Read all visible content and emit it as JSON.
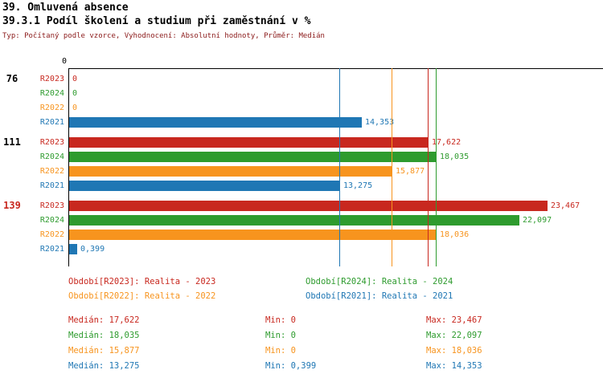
{
  "header": {
    "report_title": "39. Omluvená absence",
    "chart_title": "39.3.1 Podíl školení a studium při zaměstnání v %",
    "subtitle": "Typ: Počítaný podle vzorce, Vyhodnocení: Absolutní hodnoty, Průměr: Medián"
  },
  "colors": {
    "r2023": "#c8281f",
    "r2024": "#2e9b2e",
    "r2022": "#f7941e",
    "r2021": "#1f77b4",
    "subtitle_text": "#8b1a1a",
    "axis": "#000000",
    "group_label": "#000000",
    "group_label_highlight": "#c8281f"
  },
  "chart_data": {
    "type": "bar",
    "orientation": "horizontal",
    "title": "39.3.1 Podíl školení a studium při zaměstnání v %",
    "axis_origin_label": "0",
    "xlim": [
      0,
      23.467
    ],
    "grid": false,
    "series_order": [
      "R2023",
      "R2024",
      "R2022",
      "R2021"
    ],
    "groups": [
      {
        "label": "76",
        "highlight": false,
        "bars": [
          {
            "series": "R2023",
            "value": 0,
            "label": "0"
          },
          {
            "series": "R2024",
            "value": 0,
            "label": "0"
          },
          {
            "series": "R2022",
            "value": 0,
            "label": "0"
          },
          {
            "series": "R2021",
            "value": 14.353,
            "label": "14,353"
          }
        ]
      },
      {
        "label": "111",
        "highlight": false,
        "bars": [
          {
            "series": "R2023",
            "value": 17.622,
            "label": "17,622"
          },
          {
            "series": "R2024",
            "value": 18.035,
            "label": "18,035"
          },
          {
            "series": "R2022",
            "value": 15.877,
            "label": "15,877"
          },
          {
            "series": "R2021",
            "value": 13.275,
            "label": "13,275"
          }
        ]
      },
      {
        "label": "139",
        "highlight": true,
        "bars": [
          {
            "series": "R2023",
            "value": 23.467,
            "label": "23,467"
          },
          {
            "series": "R2024",
            "value": 22.097,
            "label": "22,097"
          },
          {
            "series": "R2022",
            "value": 18.036,
            "label": "18,036"
          },
          {
            "series": "R2021",
            "value": 0.399,
            "label": "0,399"
          }
        ]
      }
    ],
    "median_lines": [
      {
        "series": "R2023",
        "value": 17.622
      },
      {
        "series": "R2024",
        "value": 18.035
      },
      {
        "series": "R2022",
        "value": 15.877
      },
      {
        "series": "R2021",
        "value": 13.275
      }
    ]
  },
  "legend": [
    {
      "series": "R2023",
      "label": "Období[R2023]: Realita - 2023"
    },
    {
      "series": "R2024",
      "label": "Období[R2024]: Realita - 2024"
    },
    {
      "series": "R2022",
      "label": "Období[R2022]: Realita - 2022"
    },
    {
      "series": "R2021",
      "label": "Období[R2021]: Realita - 2021"
    }
  ],
  "stats": [
    {
      "series": "R2023",
      "median": "Medián: 17,622",
      "min": "Min: 0",
      "max": "Max: 23,467"
    },
    {
      "series": "R2024",
      "median": "Medián: 18,035",
      "min": "Min: 0",
      "max": "Max: 22,097"
    },
    {
      "series": "R2022",
      "median": "Medián: 15,877",
      "min": "Min: 0",
      "max": "Max: 18,036"
    },
    {
      "series": "R2021",
      "median": "Medián: 13,275",
      "min": "Min: 0,399",
      "max": "Max: 14,353"
    }
  ]
}
